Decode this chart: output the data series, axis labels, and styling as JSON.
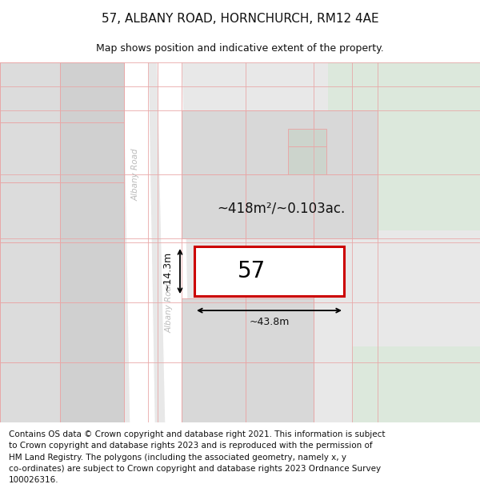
{
  "title_line1": "57, ALBANY ROAD, HORNCHURCH, RM12 4AE",
  "title_line2": "Map shows position and indicative extent of the property.",
  "footer_text": "Contains OS data © Crown copyright and database right 2021. This information is subject\nto Crown copyright and database rights 2023 and is reproduced with the permission of\nHM Land Registry. The polygons (including the associated geometry, namely x, y\nco-ordinates) are subject to Crown copyright and database rights 2023 Ordnance Survey\n100026316.",
  "property_label": "57",
  "area_label": "~418m²/~0.103ac.",
  "width_label": "~43.8m",
  "height_label": "~14.3m",
  "road_label": "Albany Road",
  "map_bg": "#e6e6e6",
  "road_color": "#ffffff",
  "block_color": "#d4d4d4",
  "block_light": "#e0e0e0",
  "green_color": "#dce8dc",
  "red_line": "#e8a8a8",
  "prop_edge": "#cc0000",
  "prop_fill": "#ffffff",
  "title_fs": 11,
  "sub_fs": 9,
  "footer_fs": 7.5,
  "prop_num_fs": 20,
  "area_fs": 12,
  "dim_fs": 9,
  "road_fs": 7.5
}
